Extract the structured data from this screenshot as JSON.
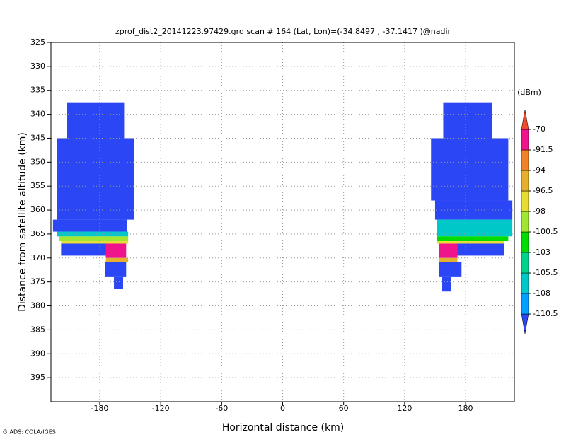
{
  "chart_data": {
    "type": "heatmap",
    "title": "zprof_dist2_20141223.97429.grd  scan # 164  (Lat, Lon)=(-34.8497 , -37.1417 )@nadir",
    "x_label": "Horizontal distance (km)",
    "y_label": "Distance from satellite altitude (km)",
    "footer": "GrADS: COLA/IGES",
    "xlim": [
      -228,
      228
    ],
    "ylim": [
      325,
      400
    ],
    "y_reversed": true,
    "grid": true,
    "xticks": [
      -180,
      -120,
      -60,
      0,
      60,
      120,
      180
    ],
    "yticks": [
      325,
      330,
      335,
      340,
      345,
      350,
      355,
      360,
      365,
      370,
      375,
      380,
      385,
      390,
      395
    ],
    "colorbar": {
      "label": "(dBm)",
      "levels": [
        -110.5,
        -108,
        -105.5,
        -103,
        -100.5,
        -98,
        -96.5,
        -94,
        -91.5,
        -70
      ],
      "colors": [
        "#2a46f5",
        "#00a0ff",
        "#00c8c8",
        "#00d28c",
        "#00dc00",
        "#a0e632",
        "#e6dc32",
        "#e6af2d",
        "#f08228",
        "#f0148c",
        "#f04a2a"
      ]
    },
    "regions": [
      {
        "x": [
          -212,
          -156
        ],
        "y": [
          337.5,
          345
        ],
        "value": -112
      },
      {
        "x": [
          -222,
          -146
        ],
        "y": [
          345,
          362
        ],
        "value": -112
      },
      {
        "x": [
          -226,
          -153
        ],
        "y": [
          362,
          364.5
        ],
        "value": -112
      },
      {
        "x": [
          -222,
          -152
        ],
        "y": [
          364.5,
          365.5
        ],
        "value": -107
      },
      {
        "x": [
          -220,
          -152
        ],
        "y": [
          365.5,
          366.5
        ],
        "value": -100
      },
      {
        "x": [
          -218,
          -152
        ],
        "y": [
          366.5,
          367
        ],
        "value": -97
      },
      {
        "x": [
          -218,
          -172
        ],
        "y": [
          367,
          369.5
        ],
        "value": -112
      },
      {
        "x": [
          -174,
          -154
        ],
        "y": [
          367,
          370
        ],
        "value": -85
      },
      {
        "x": [
          -174,
          -152
        ],
        "y": [
          370,
          370.8
        ],
        "value": -96
      },
      {
        "x": [
          -175,
          -154
        ],
        "y": [
          370.8,
          374
        ],
        "value": -112
      },
      {
        "x": [
          -166,
          -157
        ],
        "y": [
          374,
          376.5
        ],
        "value": -112
      },
      {
        "x": [
          158,
          206
        ],
        "y": [
          337.5,
          345
        ],
        "value": -112
      },
      {
        "x": [
          146,
          222
        ],
        "y": [
          345,
          358
        ],
        "value": -112
      },
      {
        "x": [
          150,
          226
        ],
        "y": [
          358,
          362
        ],
        "value": -112
      },
      {
        "x": [
          152,
          226
        ],
        "y": [
          362,
          365.5
        ],
        "value": -106
      },
      {
        "x": [
          152,
          222
        ],
        "y": [
          365.5,
          366.5
        ],
        "value": -101
      },
      {
        "x": [
          152,
          218
        ],
        "y": [
          366.5,
          367
        ],
        "value": -97
      },
      {
        "x": [
          168,
          218
        ],
        "y": [
          367,
          369.5
        ],
        "value": -112
      },
      {
        "x": [
          154,
          172
        ],
        "y": [
          367,
          370
        ],
        "value": -85
      },
      {
        "x": [
          154,
          172
        ],
        "y": [
          370,
          370.8
        ],
        "value": -96
      },
      {
        "x": [
          154,
          176
        ],
        "y": [
          370.8,
          374
        ],
        "value": -112
      },
      {
        "x": [
          157,
          166
        ],
        "y": [
          374,
          377
        ],
        "value": -112
      }
    ]
  }
}
